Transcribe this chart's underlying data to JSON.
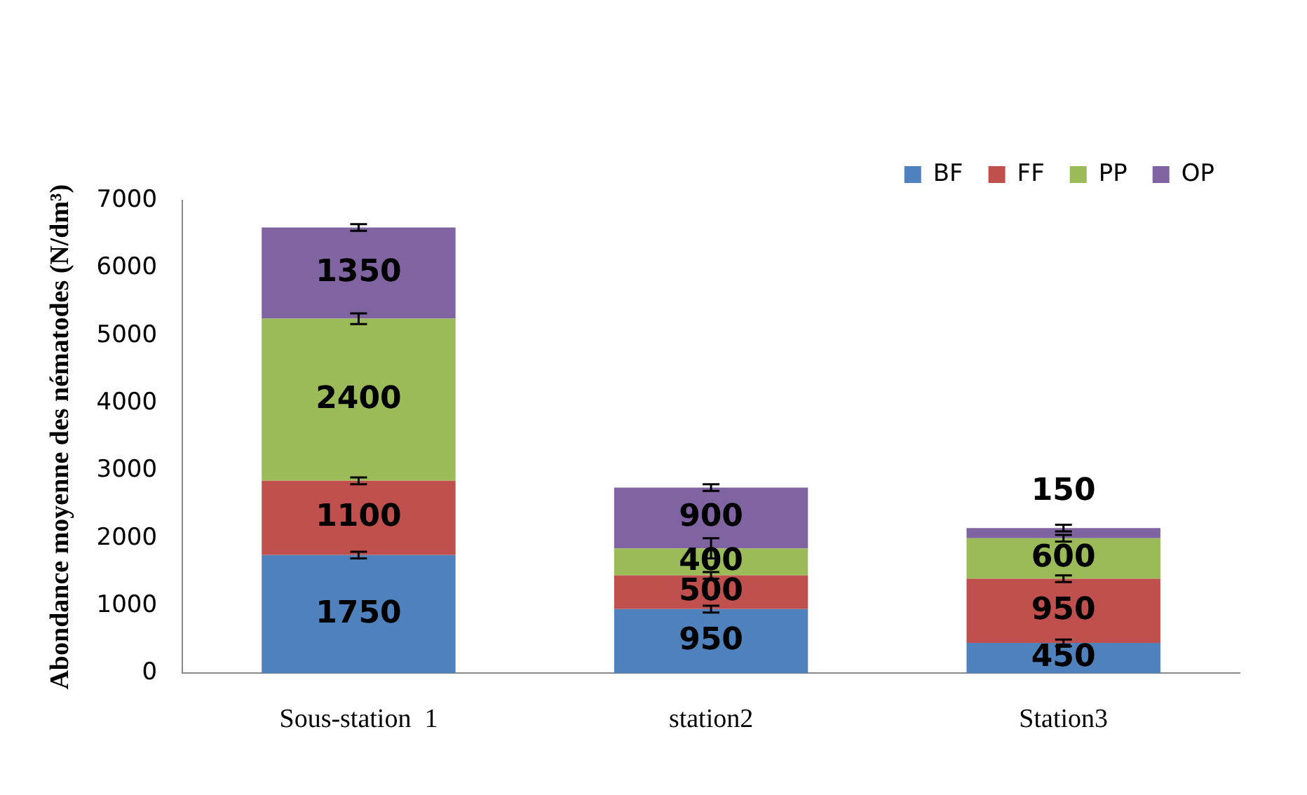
{
  "chart_data": {
    "type": "bar",
    "stacked": true,
    "ylabel": "Abondance moyenne des nématodes (N/dm³)",
    "categories": [
      "Sous-station  1",
      "station2",
      "Station3"
    ],
    "series": [
      {
        "name": "BF",
        "color": "#4f81bd",
        "values": [
          1750,
          950,
          450
        ],
        "errors": [
          50,
          50,
          50
        ]
      },
      {
        "name": "FF",
        "color": "#c0504d",
        "values": [
          1100,
          500,
          950
        ],
        "errors": [
          50,
          50,
          50
        ]
      },
      {
        "name": "PP",
        "color": "#9bbb59",
        "values": [
          2400,
          400,
          600
        ],
        "errors": [
          80,
          150,
          50
        ]
      },
      {
        "name": "OP",
        "color": "#8064a2",
        "values": [
          1350,
          900,
          150
        ],
        "errors": [
          50,
          50,
          50
        ]
      }
    ],
    "ylim": [
      0,
      7000
    ],
    "yticks": [
      0,
      1000,
      2000,
      3000,
      4000,
      5000,
      6000,
      7000
    ],
    "grid": false,
    "legend": "top right",
    "data_labels": true
  }
}
